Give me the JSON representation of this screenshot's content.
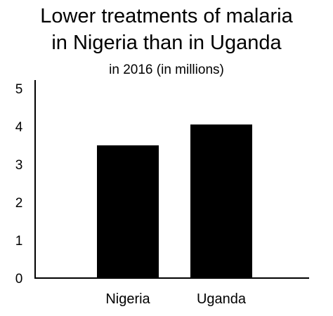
{
  "chart_data": {
    "type": "bar",
    "title_lines": [
      "Lower treatments of malaria",
      "in Nigeria than in Uganda"
    ],
    "subtitle": "in 2016 (in millions)",
    "categories": [
      "Nigeria",
      "Uganda"
    ],
    "values": [
      3.5,
      4.05
    ],
    "ylim": [
      0,
      5
    ],
    "yticks": [
      "0",
      "1",
      "2",
      "3",
      "4",
      "5"
    ],
    "xlabel": "",
    "ylabel": "",
    "grid": false,
    "bar_color": "#000000",
    "axis_color": "#000000"
  }
}
